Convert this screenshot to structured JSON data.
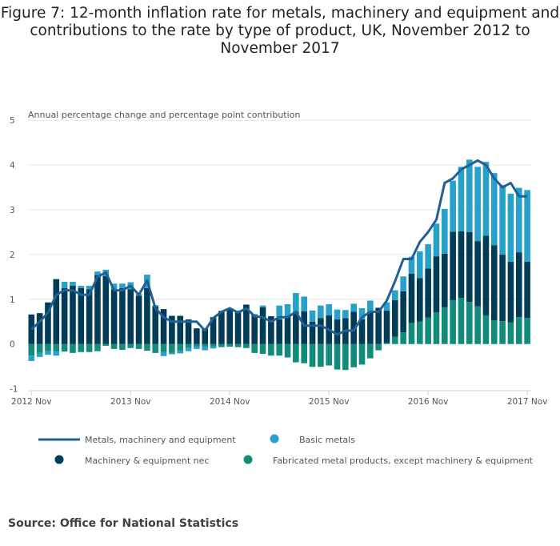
{
  "title_lines": [
    "Figure 7: 12-month inflation rate for metals, machinery and equipment and",
    "contributions to the rate by type of product, UK, November 2012 to",
    "November 2017"
  ],
  "source": "Source: Office for National Statistics",
  "colors": {
    "line": "#206095",
    "basic_metals": "#27a0cc",
    "machinery": "#003c57",
    "fabricated": "#118c7b",
    "grid": "#e6e6e6",
    "axis": "#c8d3e6"
  },
  "chart_data": {
    "type": "bar",
    "stacked": true,
    "title": "Figure 7: 12-month inflation rate for metals, machinery and equipment and contributions to the rate by type of product, UK, November 2012 to November 2017",
    "ylabel": "Annual percentage change and percentage point contribution",
    "xlabel": "",
    "ylim": [
      -1,
      5
    ],
    "yticks": [
      5,
      4,
      3,
      2,
      1,
      0,
      -1
    ],
    "xtick_labels": [
      "2012 Nov",
      "2013 Nov",
      "2014 Nov",
      "2015 Nov",
      "2016 Nov",
      "2017 Nov"
    ],
    "xtick_indices": [
      0,
      12,
      24,
      36,
      48,
      60
    ],
    "grid": true,
    "legend_position": "bottom",
    "categories": [
      "2012 Nov",
      "2012 Dec",
      "2013 Jan",
      "2013 Feb",
      "2013 Mar",
      "2013 Apr",
      "2013 May",
      "2013 Jun",
      "2013 Jul",
      "2013 Aug",
      "2013 Sep",
      "2013 Oct",
      "2013 Nov",
      "2013 Dec",
      "2014 Jan",
      "2014 Feb",
      "2014 Mar",
      "2014 Apr",
      "2014 May",
      "2014 Jun",
      "2014 Jul",
      "2014 Aug",
      "2014 Sep",
      "2014 Oct",
      "2014 Nov",
      "2014 Dec",
      "2015 Jan",
      "2015 Feb",
      "2015 Mar",
      "2015 Apr",
      "2015 May",
      "2015 Jun",
      "2015 Jul",
      "2015 Aug",
      "2015 Sep",
      "2015 Oct",
      "2015 Nov",
      "2015 Dec",
      "2016 Jan",
      "2016 Feb",
      "2016 Mar",
      "2016 Apr",
      "2016 May",
      "2016 Jun",
      "2016 Jul",
      "2016 Aug",
      "2016 Sep",
      "2016 Oct",
      "2016 Nov",
      "2016 Dec",
      "2017 Jan",
      "2017 Feb",
      "2017 Mar",
      "2017 Apr",
      "2017 May",
      "2017 Jun",
      "2017 Jul",
      "2017 Aug",
      "2017 Sep",
      "2017 Oct",
      "2017 Nov"
    ],
    "series": [
      {
        "name": "Metals, machinery and equipment",
        "kind": "line",
        "values": [
          0.33,
          0.5,
          0.7,
          1.1,
          1.2,
          1.2,
          1.1,
          1.1,
          1.5,
          1.6,
          1.2,
          1.2,
          1.3,
          1.1,
          1.42,
          0.8,
          0.6,
          0.5,
          0.5,
          0.5,
          0.5,
          0.3,
          0.58,
          0.72,
          0.8,
          0.7,
          0.8,
          0.62,
          0.6,
          0.5,
          0.6,
          0.6,
          0.72,
          0.41,
          0.41,
          0.41,
          0.32,
          0.21,
          0.3,
          0.3,
          0.6,
          0.72,
          0.72,
          0.97,
          1.4,
          1.9,
          1.9,
          2.28,
          2.5,
          2.78,
          3.6,
          3.7,
          3.9,
          4.0,
          4.1,
          4.0,
          3.7,
          3.5,
          3.6,
          3.3,
          3.3
        ]
      },
      {
        "name": "Basic metals",
        "kind": "bar",
        "values": [
          -0.12,
          -0.09,
          -0.08,
          -0.09,
          0.14,
          0.09,
          0.05,
          0.08,
          0.08,
          0.14,
          0.13,
          0.1,
          0.16,
          0.04,
          0.3,
          0.03,
          -0.09,
          -0.03,
          -0.06,
          -0.07,
          -0.06,
          -0.09,
          -0.05,
          0.0,
          0.03,
          0.03,
          0.0,
          0.02,
          0.04,
          0.0,
          0.31,
          0.28,
          0.42,
          0.33,
          0.25,
          0.28,
          0.25,
          0.22,
          0.18,
          0.18,
          0.25,
          0.25,
          0.0,
          0.18,
          0.22,
          0.33,
          0.38,
          0.6,
          0.54,
          0.73,
          1.0,
          1.14,
          1.44,
          1.62,
          1.66,
          1.65,
          1.61,
          1.55,
          1.52,
          1.44,
          1.6
        ]
      },
      {
        "name": "Machinery & equipment nec",
        "kind": "bar",
        "values": [
          0.66,
          0.69,
          0.93,
          1.45,
          1.25,
          1.3,
          1.25,
          1.22,
          1.54,
          1.52,
          1.22,
          1.25,
          1.22,
          1.08,
          1.25,
          0.84,
          0.78,
          0.63,
          0.63,
          0.55,
          0.35,
          0.35,
          0.6,
          0.74,
          0.77,
          0.72,
          0.88,
          0.65,
          0.82,
          0.62,
          0.55,
          0.61,
          0.72,
          0.73,
          0.5,
          0.58,
          0.64,
          0.55,
          0.58,
          0.72,
          0.55,
          0.72,
          0.81,
          0.72,
          0.82,
          0.92,
          1.1,
          0.97,
          1.1,
          1.25,
          1.2,
          1.53,
          1.49,
          1.56,
          1.46,
          1.78,
          1.68,
          1.49,
          1.36,
          1.45,
          1.26
        ]
      },
      {
        "name": "Fabricated metal products, except machinery & equipment",
        "kind": "bar",
        "values": [
          -0.26,
          -0.2,
          -0.16,
          -0.17,
          -0.17,
          -0.2,
          -0.18,
          -0.18,
          -0.16,
          -0.04,
          -0.11,
          -0.13,
          -0.09,
          -0.11,
          -0.15,
          -0.2,
          -0.18,
          -0.2,
          -0.15,
          -0.09,
          -0.05,
          -0.05,
          -0.05,
          -0.07,
          -0.06,
          -0.07,
          -0.09,
          -0.2,
          -0.22,
          -0.26,
          -0.26,
          -0.3,
          -0.41,
          -0.43,
          -0.51,
          -0.51,
          -0.48,
          -0.57,
          -0.58,
          -0.52,
          -0.46,
          -0.32,
          -0.14,
          0.03,
          0.16,
          0.26,
          0.47,
          0.5,
          0.59,
          0.71,
          0.82,
          0.98,
          1.03,
          0.94,
          0.84,
          0.64,
          0.53,
          0.51,
          0.48,
          0.6,
          0.58
        ]
      }
    ],
    "legend": [
      {
        "label": "Metals, machinery and equipment",
        "marker": "line"
      },
      {
        "label": "Basic metals",
        "marker": "dot"
      },
      {
        "label": "Machinery & equipment nec",
        "marker": "dot"
      },
      {
        "label": "Fabricated metal products, except machinery & equipment",
        "marker": "dot"
      }
    ]
  }
}
